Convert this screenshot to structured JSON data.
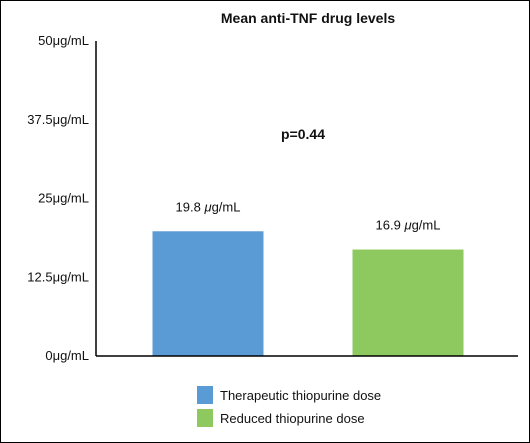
{
  "chart_data": {
    "type": "bar",
    "title": "Mean anti-TNF drug levels",
    "xlabel": "",
    "ylabel": "",
    "ylim": [
      0,
      50
    ],
    "yticks": [
      0,
      12.5,
      25,
      37.5,
      50
    ],
    "ytick_labels": [
      "0μg/mL",
      "12.5μg/mL",
      "25μg/mL",
      "37.5μg/mL",
      "50μg/mL"
    ],
    "unit": "μg/mL",
    "categories": [
      "Therapeutic thiopurine dose",
      "Reduced thiopurine dose"
    ],
    "values": [
      19.8,
      16.9
    ],
    "data_labels": [
      "19.8",
      "16.9"
    ],
    "colors": [
      "#5b9bd5",
      "#8dc95f"
    ],
    "annotation": "p=0.44",
    "legend": {
      "position": "bottom",
      "entries": [
        "Therapeutic thiopurine dose",
        "Reduced thiopurine dose"
      ]
    },
    "grid": false
  }
}
